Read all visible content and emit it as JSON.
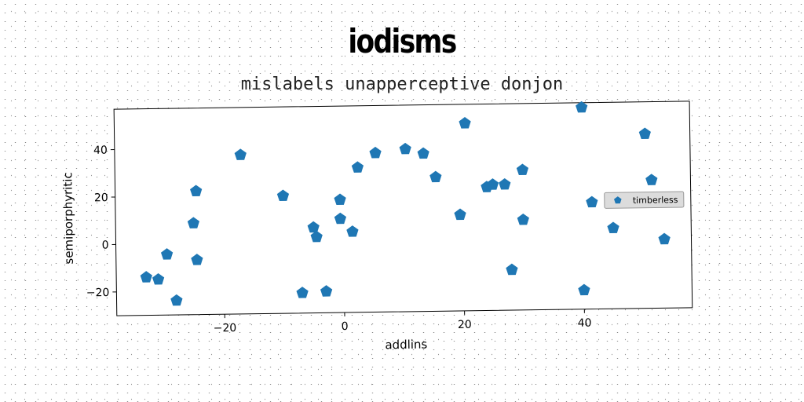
{
  "chart_data": {
    "type": "scatter",
    "title": "iodisms",
    "subtitle": "mislabels unapperceptive donjon",
    "xlabel": "addlins",
    "ylabel": "semiporphyritic",
    "xlim": [
      -38,
      58
    ],
    "ylim": [
      -30,
      57
    ],
    "xticks": [
      -20,
      0,
      20,
      40
    ],
    "yticks": [
      -20,
      0,
      20,
      40
    ],
    "grid": false,
    "legend_position": "right",
    "marker": "pentagon",
    "series": [
      {
        "name": "timberless",
        "color": "#1f77b4",
        "points": [
          [
            -33,
            -14
          ],
          [
            -31,
            -15
          ],
          [
            -29.5,
            -4.5
          ],
          [
            -28,
            -24
          ],
          [
            -25,
            8.5
          ],
          [
            -24.5,
            22
          ],
          [
            -24.5,
            -7
          ],
          [
            -17,
            37
          ],
          [
            -10,
            19.5
          ],
          [
            -7,
            -21.5
          ],
          [
            -5,
            6
          ],
          [
            -4.5,
            2
          ],
          [
            -3,
            -21
          ],
          [
            -0.5,
            17.5
          ],
          [
            -0.5,
            9.5
          ],
          [
            1.5,
            4
          ],
          [
            2.5,
            31
          ],
          [
            5.5,
            37
          ],
          [
            10.5,
            38.5
          ],
          [
            13.5,
            36.5
          ],
          [
            15.5,
            26.5
          ],
          [
            19.5,
            10.5
          ],
          [
            20.5,
            49
          ],
          [
            24,
            22
          ],
          [
            25,
            23
          ],
          [
            27,
            23
          ],
          [
            28,
            -13
          ],
          [
            30,
            29
          ],
          [
            30,
            8
          ],
          [
            40,
            55
          ],
          [
            40,
            -22
          ],
          [
            41.5,
            15
          ],
          [
            45,
            4
          ],
          [
            50.5,
            43.5
          ],
          [
            51.5,
            24
          ],
          [
            53.5,
            -1
          ]
        ]
      }
    ]
  }
}
